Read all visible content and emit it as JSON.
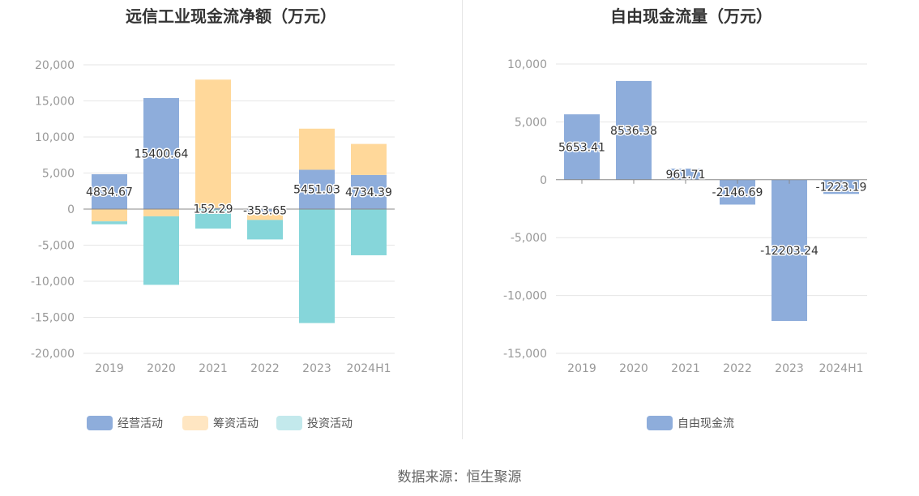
{
  "chart_data": [
    {
      "type": "bar",
      "stacked": true,
      "title": "远信工业现金流净额（万元）",
      "categories": [
        "2019",
        "2020",
        "2021",
        "2022",
        "2023",
        "2024H1"
      ],
      "ylim": [
        -20000,
        20000
      ],
      "yticks": [
        20000,
        15000,
        10000,
        5000,
        0,
        -5000,
        -10000,
        -15000,
        -20000
      ],
      "ytick_labels": [
        "20,000",
        "15,000",
        "10,000",
        "5,000",
        "0",
        "-5,000",
        "-10,000",
        "-15,000",
        "-20,000"
      ],
      "grid": true,
      "legend_position": "bottom",
      "series": [
        {
          "name": "经营活动",
          "color": "#8eaddb",
          "values": [
            4834.67,
            15400.64,
            152.29,
            -353.65,
            5451.03,
            4734.39
          ],
          "labels": [
            "4834.67",
            "15400.64",
            "152.29",
            "-353.65",
            "5451.03",
            "4734.39"
          ]
        },
        {
          "name": "筹资活动",
          "color": "#ffd89a",
          "values": [
            -1700,
            -1000,
            17800,
            -1150,
            5700,
            4300
          ]
        },
        {
          "name": "投资活动",
          "color": "#86d6da",
          "values": [
            -400,
            -9500,
            -2700,
            -2700,
            -15800,
            -6400
          ]
        }
      ]
    },
    {
      "type": "bar",
      "title": "自由现金流量（万元）",
      "categories": [
        "2019",
        "2020",
        "2021",
        "2022",
        "2023",
        "2024H1"
      ],
      "ylim": [
        -15000,
        10000
      ],
      "yticks": [
        10000,
        5000,
        0,
        -5000,
        -10000,
        -15000
      ],
      "ytick_labels": [
        "10,000",
        "5,000",
        "0",
        "-5,000",
        "-10,000",
        "-15,000"
      ],
      "grid": true,
      "legend_position": "bottom",
      "series": [
        {
          "name": "自由现金流",
          "color": "#8eaddb",
          "values": [
            5653.41,
            8536.38,
            961.71,
            -2146.69,
            -12203.24,
            -1223.19
          ],
          "labels": [
            "5653.41",
            "8536.38",
            "961.71",
            "-2146.69",
            "-12203.24",
            "-1223.19"
          ]
        }
      ]
    }
  ],
  "legend_swatch_colors": {
    "经营活动": "#8eaddb",
    "筹资活动": "#ffe6c2",
    "投资活动": "#c3e9ec",
    "自由现金流": "#8eaddb"
  },
  "footer": "数据来源：恒生聚源"
}
